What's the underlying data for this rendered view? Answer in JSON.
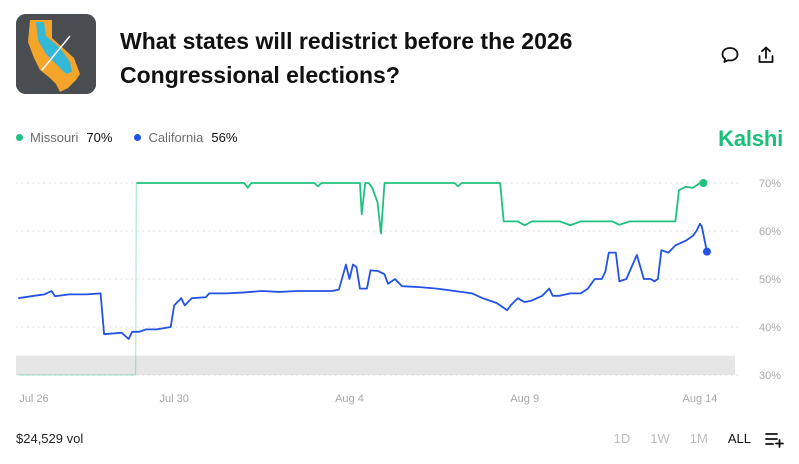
{
  "header": {
    "title": "What states will redistrict before the 2026 Congressional elections?"
  },
  "legend": [
    {
      "name": "Missouri",
      "pct": "70%",
      "color": "#1ec27f"
    },
    {
      "name": "California",
      "pct": "56%",
      "color": "#2451e6"
    }
  ],
  "brand": "Kalshi",
  "footer": {
    "volume": "$24,529 vol",
    "ranges": [
      "1D",
      "1W",
      "1M",
      "ALL"
    ],
    "active_range": "ALL"
  },
  "icons": {
    "comment": "comment-icon",
    "share": "share-icon",
    "add": "add-to-list-icon"
  },
  "chart_data": {
    "type": "line",
    "x_ticks": [
      "Jul 26",
      "Jul 30",
      "Aug 4",
      "Aug 9",
      "Aug 14"
    ],
    "x_tick_dates": [
      0,
      4,
      9,
      14,
      19
    ],
    "y_ticks": [
      "70%",
      "60%",
      "50%",
      "40%",
      "30%"
    ],
    "ylim": [
      29,
      72
    ],
    "y_axis_side": "right",
    "grid": true,
    "series": [
      {
        "name": "Missouri",
        "color": "#1ec27f",
        "points": [
          [
            -0.45,
            30
          ],
          [
            2.9,
            30
          ],
          [
            2.92,
            70
          ],
          [
            6.0,
            70
          ],
          [
            6.1,
            69
          ],
          [
            6.2,
            70
          ],
          [
            8.0,
            70
          ],
          [
            8.1,
            69.3
          ],
          [
            8.2,
            70
          ],
          [
            9.3,
            70
          ],
          [
            9.35,
            63.5
          ],
          [
            9.45,
            70
          ],
          [
            9.55,
            70
          ],
          [
            9.65,
            69
          ],
          [
            9.8,
            66
          ],
          [
            9.9,
            59.5
          ],
          [
            10.0,
            70
          ],
          [
            12.0,
            70
          ],
          [
            12.1,
            69.3
          ],
          [
            12.2,
            70
          ],
          [
            13.3,
            70
          ],
          [
            13.4,
            62
          ],
          [
            13.8,
            62
          ],
          [
            14.0,
            61.2
          ],
          [
            14.2,
            62
          ],
          [
            15.0,
            62
          ],
          [
            15.3,
            61.2
          ],
          [
            15.6,
            62
          ],
          [
            16.5,
            62
          ],
          [
            16.7,
            61.3
          ],
          [
            17.0,
            62
          ],
          [
            18.3,
            62
          ],
          [
            18.4,
            68.5
          ],
          [
            18.6,
            69.2
          ],
          [
            18.8,
            69
          ],
          [
            19.0,
            70
          ],
          [
            19.1,
            70
          ]
        ]
      },
      {
        "name": "California",
        "color": "#2451e6",
        "points": [
          [
            -0.45,
            46
          ],
          [
            0.0,
            46.5
          ],
          [
            0.3,
            46.8
          ],
          [
            0.5,
            47.5
          ],
          [
            0.6,
            46.4
          ],
          [
            1.0,
            46.8
          ],
          [
            1.5,
            46.8
          ],
          [
            1.9,
            47
          ],
          [
            2.0,
            38.5
          ],
          [
            2.5,
            38.8
          ],
          [
            2.7,
            37.5
          ],
          [
            2.8,
            39
          ],
          [
            3.0,
            39
          ],
          [
            3.2,
            39.5
          ],
          [
            3.5,
            39.5
          ],
          [
            3.9,
            40
          ],
          [
            4.0,
            44.5
          ],
          [
            4.2,
            46
          ],
          [
            4.3,
            44.5
          ],
          [
            4.5,
            46
          ],
          [
            4.9,
            46.2
          ],
          [
            5.0,
            47
          ],
          [
            5.5,
            47
          ],
          [
            6.0,
            47.2
          ],
          [
            6.5,
            47.5
          ],
          [
            7.0,
            47.3
          ],
          [
            7.5,
            47.5
          ],
          [
            8.0,
            47.5
          ],
          [
            8.5,
            47.5
          ],
          [
            8.7,
            47.8
          ],
          [
            8.9,
            53
          ],
          [
            9.0,
            50
          ],
          [
            9.1,
            53
          ],
          [
            9.2,
            52.5
          ],
          [
            9.3,
            48
          ],
          [
            9.5,
            48
          ],
          [
            9.6,
            51.8
          ],
          [
            9.8,
            51.7
          ],
          [
            10.0,
            51
          ],
          [
            10.1,
            49
          ],
          [
            10.3,
            50
          ],
          [
            10.5,
            48.5
          ],
          [
            11.0,
            48.3
          ],
          [
            11.5,
            48
          ],
          [
            12.0,
            47.5
          ],
          [
            12.5,
            47
          ],
          [
            12.8,
            46
          ],
          [
            13.0,
            45.5
          ],
          [
            13.2,
            45
          ],
          [
            13.3,
            44.5
          ],
          [
            13.5,
            43.5
          ],
          [
            13.6,
            44.5
          ],
          [
            13.8,
            46
          ],
          [
            14.0,
            45.2
          ],
          [
            14.2,
            45.5
          ],
          [
            14.5,
            46.5
          ],
          [
            14.7,
            48
          ],
          [
            14.8,
            46.5
          ],
          [
            15.0,
            46.5
          ],
          [
            15.3,
            47
          ],
          [
            15.6,
            47
          ],
          [
            15.8,
            48
          ],
          [
            16.0,
            50
          ],
          [
            16.2,
            50
          ],
          [
            16.3,
            51.5
          ],
          [
            16.4,
            55.5
          ],
          [
            16.6,
            55.5
          ],
          [
            16.7,
            49.5
          ],
          [
            16.9,
            50
          ],
          [
            17.2,
            55
          ],
          [
            17.4,
            50
          ],
          [
            17.6,
            50
          ],
          [
            17.7,
            49.5
          ],
          [
            17.8,
            50
          ],
          [
            17.9,
            56
          ],
          [
            18.1,
            55.5
          ],
          [
            18.3,
            57
          ],
          [
            18.6,
            58
          ],
          [
            18.8,
            59
          ],
          [
            18.9,
            60
          ],
          [
            19.0,
            61.5
          ],
          [
            19.05,
            61
          ],
          [
            19.2,
            55.7
          ]
        ]
      }
    ]
  }
}
